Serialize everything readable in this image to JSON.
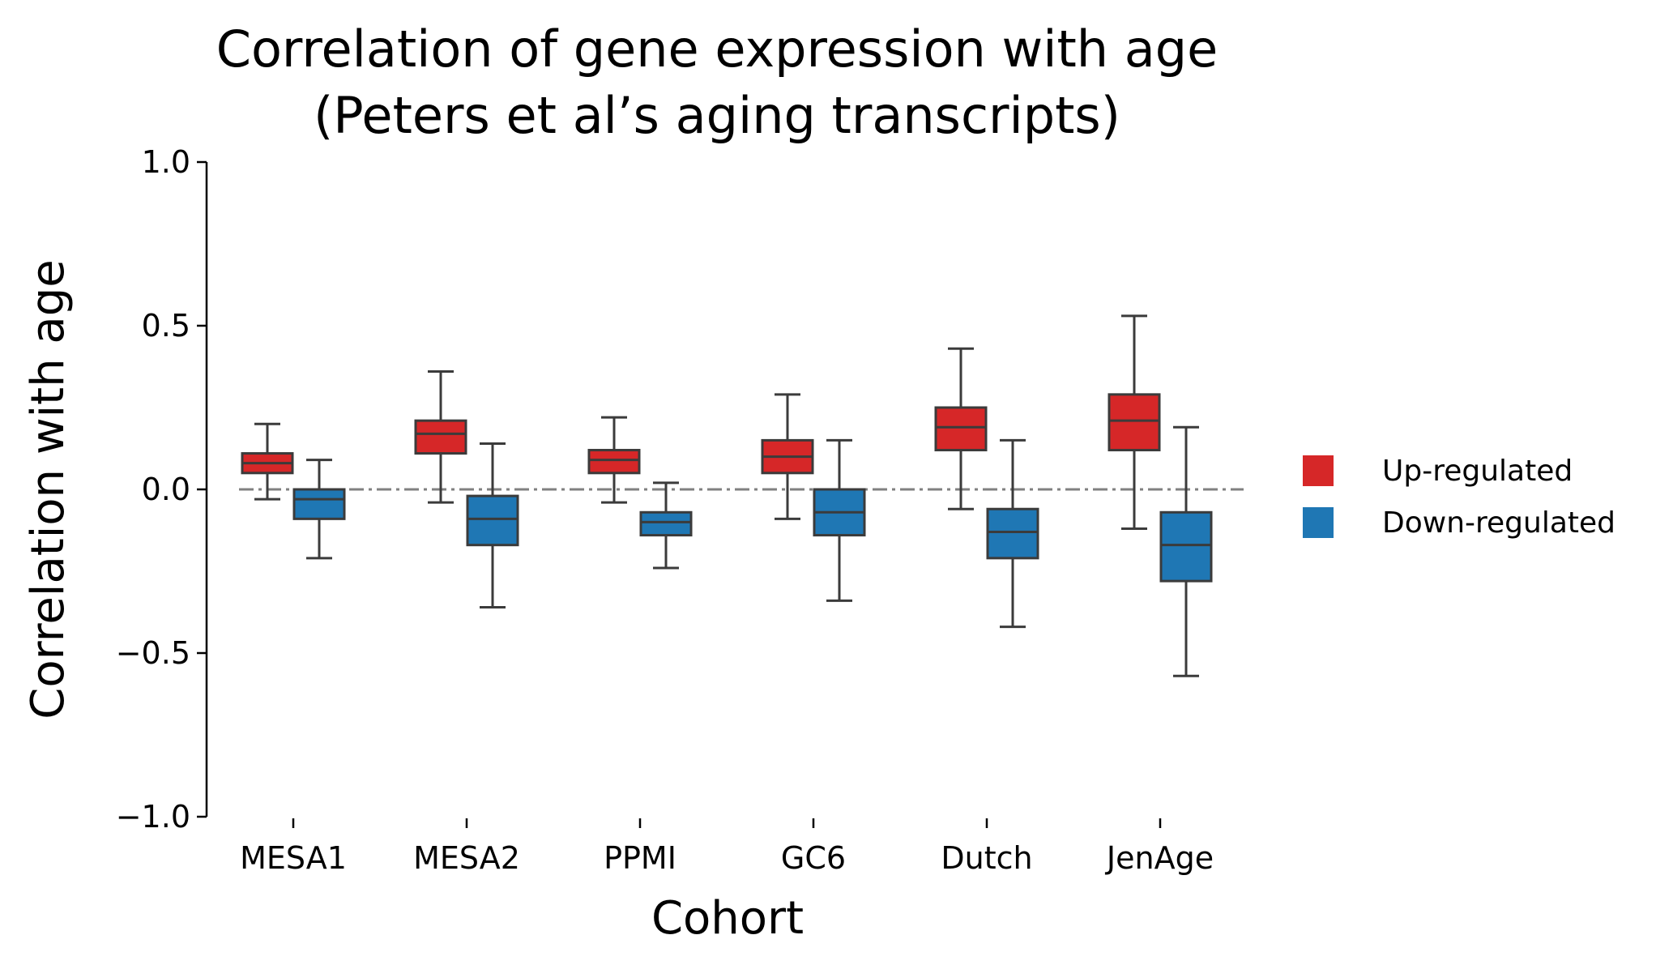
{
  "chart_data": {
    "type": "box",
    "title": "Correlation of gene expression with age\n(Peters et al’s aging transcripts)",
    "xlabel": "Cohort",
    "ylabel": "Correlation with age",
    "ylim": [
      -1.0,
      1.0
    ],
    "yticks": [
      1.0,
      0.5,
      0.0,
      -0.5,
      -1.0
    ],
    "ytick_labels": [
      "1.0",
      "0.5",
      "0.0",
      "−0.5",
      "−1.0"
    ],
    "reference_line": 0.0,
    "legend_position": "right",
    "categories": [
      "MESA1",
      "MESA2",
      "PPMI",
      "GC6",
      "Dutch",
      "JenAge"
    ],
    "series": [
      {
        "name": "Up-regulated",
        "color": "#d62728",
        "boxes": [
          {
            "whisker_low": -0.03,
            "q1": 0.05,
            "median": 0.08,
            "q3": 0.11,
            "whisker_high": 0.2
          },
          {
            "whisker_low": -0.04,
            "q1": 0.11,
            "median": 0.17,
            "q3": 0.21,
            "whisker_high": 0.36
          },
          {
            "whisker_low": -0.04,
            "q1": 0.05,
            "median": 0.09,
            "q3": 0.12,
            "whisker_high": 0.22
          },
          {
            "whisker_low": -0.09,
            "q1": 0.05,
            "median": 0.1,
            "q3": 0.15,
            "whisker_high": 0.29
          },
          {
            "whisker_low": -0.06,
            "q1": 0.12,
            "median": 0.19,
            "q3": 0.25,
            "whisker_high": 0.43
          },
          {
            "whisker_low": -0.12,
            "q1": 0.12,
            "median": 0.21,
            "q3": 0.29,
            "whisker_high": 0.53
          }
        ]
      },
      {
        "name": "Down-regulated",
        "color": "#1f77b4",
        "boxes": [
          {
            "whisker_low": -0.21,
            "q1": -0.09,
            "median": -0.03,
            "q3": 0.0,
            "whisker_high": 0.09
          },
          {
            "whisker_low": -0.36,
            "q1": -0.17,
            "median": -0.09,
            "q3": -0.02,
            "whisker_high": 0.14
          },
          {
            "whisker_low": -0.24,
            "q1": -0.14,
            "median": -0.1,
            "q3": -0.07,
            "whisker_high": 0.02
          },
          {
            "whisker_low": -0.34,
            "q1": -0.14,
            "median": -0.07,
            "q3": 0.0,
            "whisker_high": 0.15
          },
          {
            "whisker_low": -0.42,
            "q1": -0.21,
            "median": -0.13,
            "q3": -0.06,
            "whisker_high": 0.15
          },
          {
            "whisker_low": -0.57,
            "q1": -0.28,
            "median": -0.17,
            "q3": -0.07,
            "whisker_high": 0.19
          }
        ]
      }
    ]
  }
}
